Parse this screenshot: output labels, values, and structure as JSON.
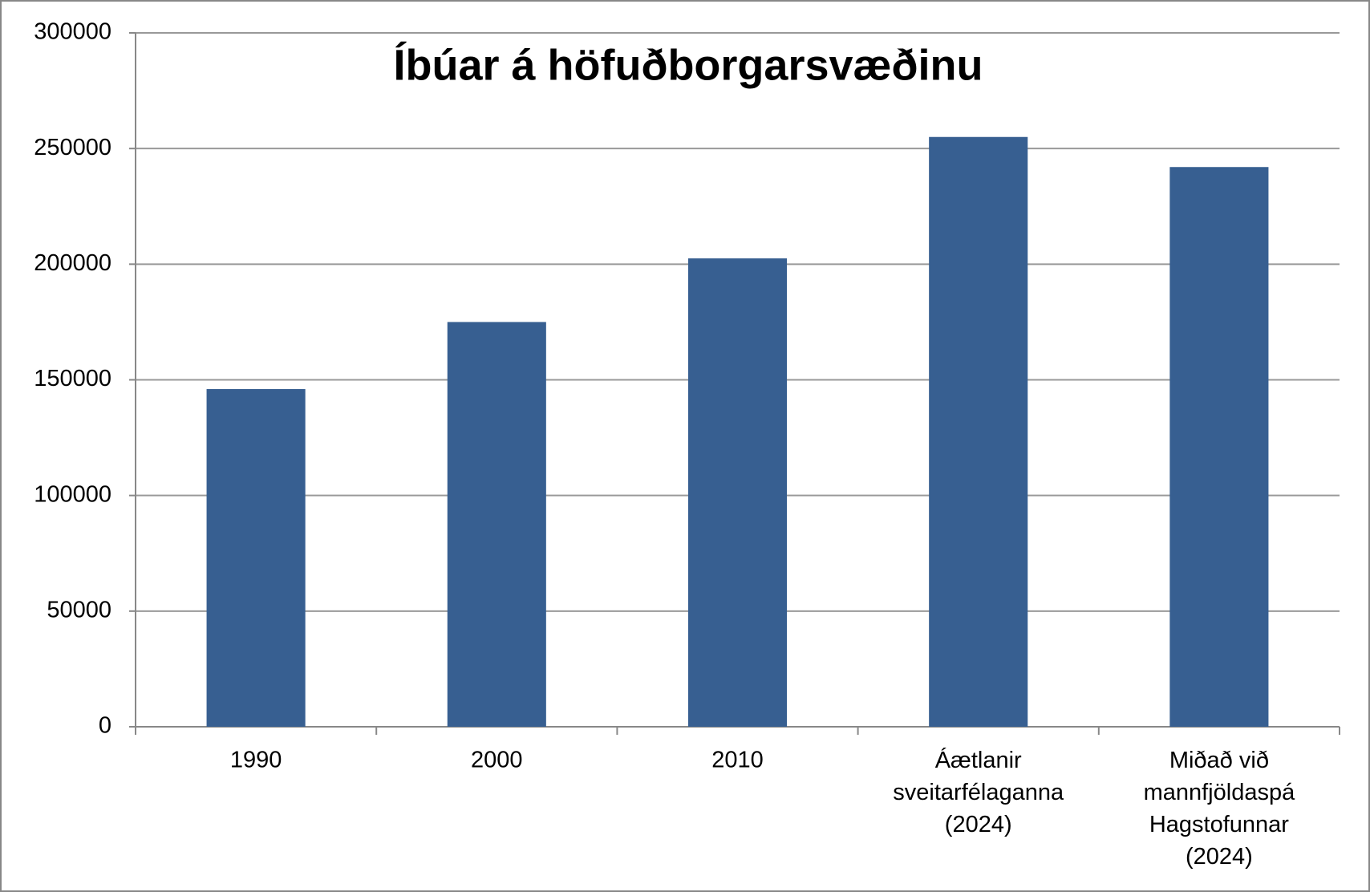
{
  "chart_data": {
    "type": "bar",
    "title": "Íbúar á höfuðborgarsvæðinu",
    "categories": [
      "1990",
      "2000",
      "2010",
      "Áætlanir\nsveitarfélaganna\n(2024)",
      "Miðað við\nmannfjöldaspá\nHagstofunnar\n(2024)"
    ],
    "values": [
      146000,
      175000,
      202500,
      255000,
      242000
    ],
    "color": "#375f91",
    "ylim": [
      0,
      300000
    ],
    "yticks": [
      0,
      50000,
      100000,
      150000,
      200000,
      250000,
      300000
    ],
    "grid": true
  }
}
